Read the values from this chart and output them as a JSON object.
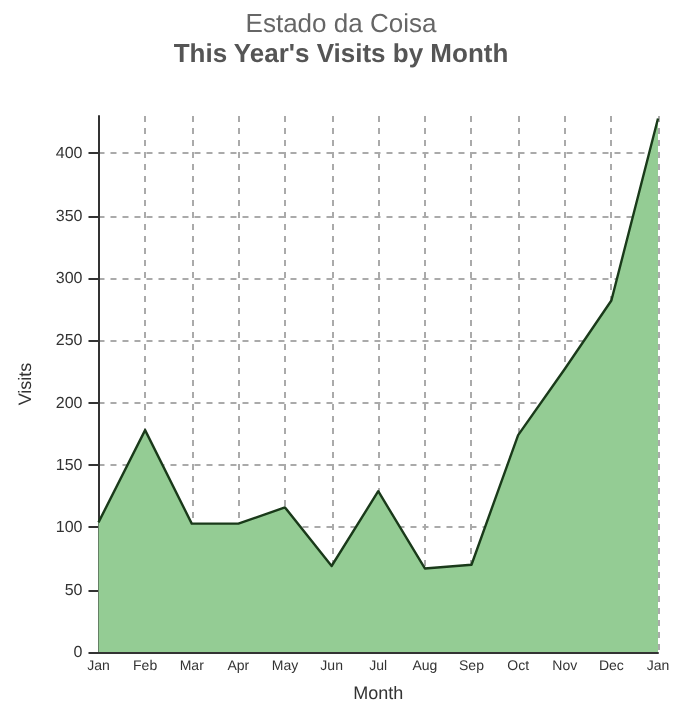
{
  "chart_data": {
    "type": "area",
    "title": "Estado da Coisa",
    "subtitle": "This Year's Visits by Month",
    "xlabel": "Month",
    "ylabel": "Visits",
    "categories": [
      "Jan",
      "Feb",
      "Mar",
      "Apr",
      "May",
      "Jun",
      "Jul",
      "Aug",
      "Sep",
      "Oct",
      "Nov",
      "Dec",
      "Jan"
    ],
    "values": [
      104,
      178,
      103,
      103,
      116,
      69,
      129,
      67,
      70,
      174,
      227,
      282,
      428
    ],
    "color": "#94cc94",
    "ylim": [
      0,
      430
    ],
    "yticks": [
      0,
      50,
      100,
      150,
      200,
      250,
      300,
      350,
      400
    ],
    "grid": true,
    "marker": "none"
  }
}
